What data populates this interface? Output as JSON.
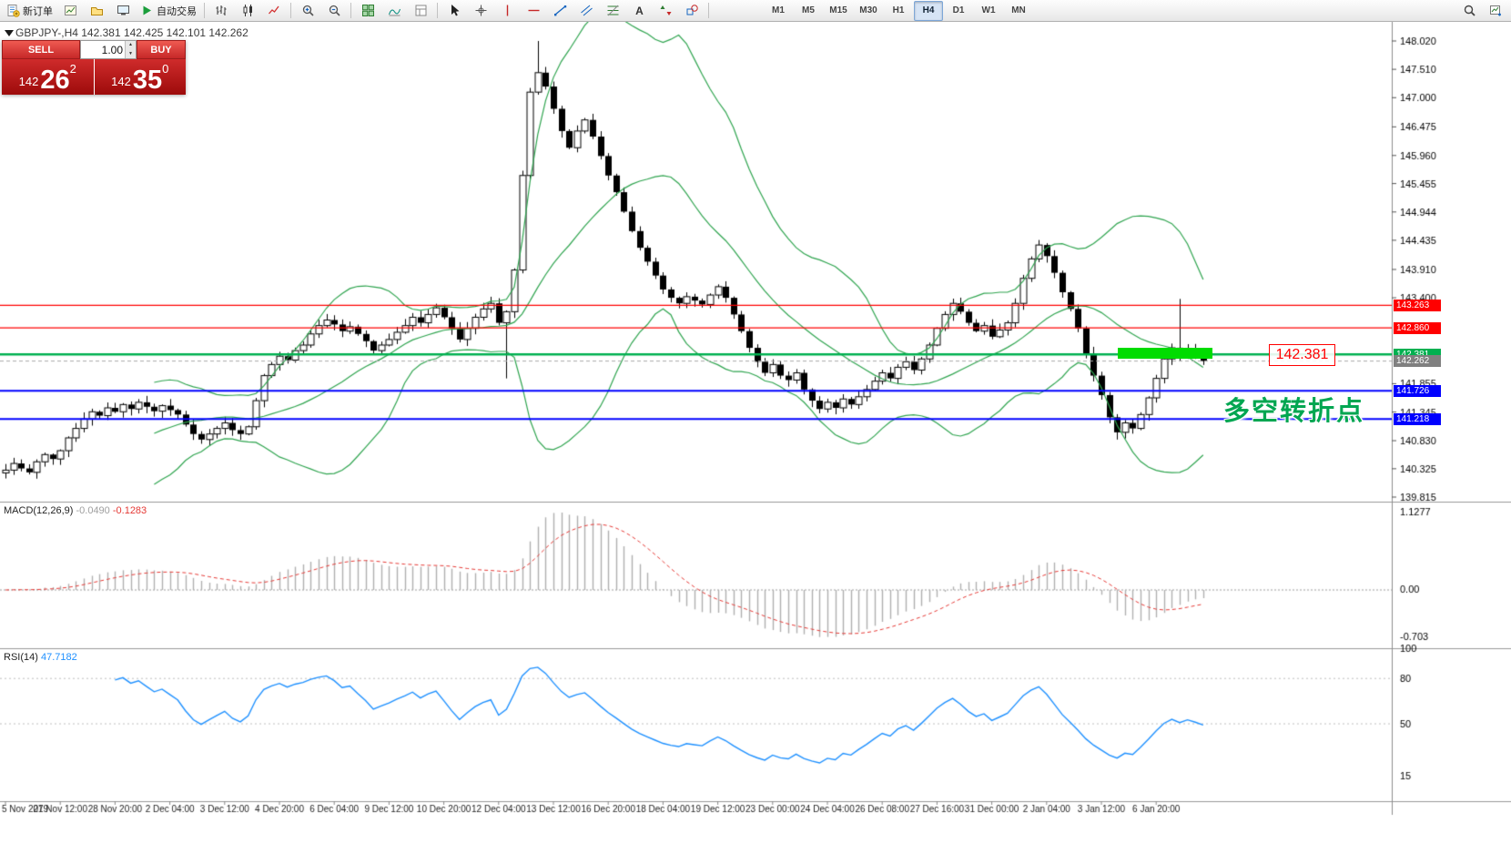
{
  "toolbar": {
    "left_buttons": [
      {
        "name": "new-order-button",
        "icon": "new-order-icon",
        "label": "新订单"
      },
      {
        "name": "chart-window-button",
        "icon": "chart-window-icon",
        "label": ""
      },
      {
        "name": "profiles-button",
        "icon": "profiles-icon",
        "label": ""
      },
      {
        "name": "terminal-button",
        "icon": "terminal-icon",
        "label": ""
      },
      {
        "name": "auto-trading-button",
        "icon": "play-icon",
        "label": "自动交易"
      }
    ],
    "chart_type_buttons": [
      {
        "name": "bar-chart-button",
        "icon": "bars-icon"
      },
      {
        "name": "candlestick-button",
        "icon": "candles-icon"
      },
      {
        "name": "line-chart-button",
        "icon": "line-chart-icon"
      }
    ],
    "zoom_buttons": [
      {
        "name": "zoom-in-button",
        "icon": "zoom-in-icon"
      },
      {
        "name": "zoom-out-button",
        "icon": "zoom-out-icon"
      }
    ],
    "window_buttons": [
      {
        "name": "tile-windows-button",
        "icon": "tile-windows-icon"
      },
      {
        "name": "indicators-button",
        "icon": "indicators-icon"
      },
      {
        "name": "templates-button",
        "icon": "templates-icon"
      }
    ],
    "drawing_buttons": [
      {
        "name": "cursor-button",
        "icon": "cursor-icon"
      },
      {
        "name": "crosshair-button",
        "icon": "crosshair-icon"
      },
      {
        "name": "vertical-line-button",
        "icon": "vertical-line-icon"
      },
      {
        "name": "horizontal-line-button",
        "icon": "horizontal-line-icon"
      },
      {
        "name": "trendline-button",
        "icon": "trendline-icon"
      },
      {
        "name": "channel-button",
        "icon": "channel-icon"
      },
      {
        "name": "fibonacci-button",
        "icon": "fibonacci-icon"
      },
      {
        "name": "text-button",
        "icon": "text-icon"
      },
      {
        "name": "arrows-button",
        "icon": "arrows-icon"
      },
      {
        "name": "shapes-button",
        "icon": "shapes-icon"
      }
    ],
    "timeframes": [
      "M1",
      "M5",
      "M15",
      "M30",
      "H1",
      "H4",
      "D1",
      "W1",
      "MN"
    ],
    "active_timeframe": "H4",
    "right_buttons": [
      {
        "name": "search-button",
        "icon": "search-icon"
      },
      {
        "name": "add-chart-button",
        "icon": "add-chart-icon"
      }
    ]
  },
  "quote_header": {
    "text": "GBPJPY-,H4  142.381 142.425 142.101 142.262"
  },
  "trade_panel": {
    "sell_label": "SELL",
    "buy_label": "BUY",
    "volume": "1.00",
    "sell_price": {
      "prefix": "142",
      "big": "26",
      "sup": "2"
    },
    "buy_price": {
      "prefix": "142",
      "big": "35",
      "sup": "0"
    }
  },
  "panels": {
    "macd": {
      "name": "MACD(12,26,9)",
      "value_main": "-0.0490",
      "value_signal": "-0.1283",
      "axis": [
        "1.1277",
        "0.00",
        "-0.703"
      ]
    },
    "rsi": {
      "name": "RSI(14)",
      "value": "47.7182",
      "axis": [
        "100",
        "80",
        "50",
        "15"
      ],
      "levels": [
        80,
        50
      ]
    }
  },
  "annotations": {
    "price_box_label": "142.381",
    "turning_point_text": "多空转折点",
    "colors": {
      "price_box": "#ff0000",
      "turning_point": "#00a651",
      "highlight": "#00dc00"
    }
  },
  "chart_data": {
    "type": "candlestick",
    "symbol": "GBPJPY-",
    "timeframe": "H4",
    "ylim": [
      139.815,
      148.02
    ],
    "closes": [
      140.3,
      140.42,
      140.33,
      140.26,
      140.45,
      140.58,
      140.5,
      140.65,
      140.88,
      141.05,
      141.22,
      141.35,
      141.28,
      141.42,
      141.35,
      141.48,
      141.4,
      141.52,
      141.44,
      141.36,
      141.46,
      141.38,
      141.3,
      141.12,
      140.95,
      140.85,
      140.95,
      141.05,
      141.15,
      141.02,
      140.95,
      141.08,
      141.55,
      142.0,
      142.2,
      142.35,
      142.28,
      142.45,
      142.55,
      142.75,
      142.9,
      143.0,
      142.92,
      142.8,
      142.88,
      142.75,
      142.62,
      142.45,
      142.55,
      142.65,
      142.78,
      142.9,
      143.05,
      142.95,
      143.1,
      143.22,
      143.05,
      142.85,
      142.65,
      142.85,
      143.05,
      143.2,
      143.3,
      142.95,
      143.15,
      143.9,
      145.6,
      147.1,
      147.45,
      147.2,
      146.8,
      146.4,
      146.1,
      146.4,
      146.6,
      146.3,
      145.95,
      145.6,
      145.3,
      144.95,
      144.6,
      144.3,
      144.05,
      143.8,
      143.55,
      143.4,
      143.3,
      143.42,
      143.35,
      143.28,
      143.45,
      143.6,
      143.4,
      143.1,
      142.8,
      142.5,
      142.25,
      142.05,
      142.2,
      142.0,
      141.92,
      142.05,
      141.75,
      141.55,
      141.4,
      141.52,
      141.42,
      141.58,
      141.48,
      141.62,
      141.75,
      141.9,
      142.05,
      141.95,
      142.15,
      142.25,
      142.1,
      142.3,
      142.55,
      142.85,
      143.1,
      143.3,
      143.15,
      142.95,
      142.8,
      142.9,
      142.7,
      142.82,
      142.95,
      143.3,
      143.75,
      144.1,
      144.35,
      144.15,
      143.85,
      143.5,
      143.2,
      142.85,
      142.4,
      142.0,
      141.65,
      141.25,
      140.98,
      141.15,
      141.05,
      141.3,
      141.6,
      141.95,
      142.3,
      142.5,
      142.35,
      142.48,
      142.38,
      142.262
    ],
    "wick_overrides": {
      "64": {
        "low": 141.95
      },
      "68": {
        "high": 148.02
      },
      "132": {
        "high": 144.44
      },
      "142": {
        "low": 140.85
      },
      "150": {
        "high": 143.38
      }
    },
    "price_axis": [
      "148.020",
      "147.510",
      "147.000",
      "146.475",
      "145.960",
      "145.455",
      "144.944",
      "144.435",
      "143.910",
      "143.400",
      "141.855",
      "141.345",
      "140.830",
      "140.325",
      "139.815"
    ],
    "hlines": [
      {
        "price": 143.263,
        "color": "#ff0000",
        "tag": "143.263",
        "width": 1.2
      },
      {
        "price": 142.86,
        "color": "#ff0000",
        "tag": "142.860",
        "width": 1.2
      },
      {
        "price": 142.381,
        "color": "#00b050",
        "tag": "142.381",
        "width": 2.4
      },
      {
        "price": 141.726,
        "color": "#0000ff",
        "tag": "141.726",
        "width": 2
      },
      {
        "price": 141.218,
        "color": "#0000ff",
        "tag": "141.218",
        "width": 2
      }
    ],
    "current_price": {
      "price": 142.262,
      "tag": "142.262",
      "color": "#808080"
    },
    "colors": {
      "bollinger": "#2fa44f",
      "bull": "#ffffff",
      "bear": "#000000",
      "rsi_line": "#1e90ff",
      "macd_hist": "#b0b0b0",
      "macd_signal": "#e53935"
    },
    "time_axis": [
      "5 Nov 2019",
      "27 Nov 12:00",
      "28 Nov 20:00",
      "2 Dec 04:00",
      "3 Dec 12:00",
      "4 Dec 20:00",
      "6 Dec 04:00",
      "9 Dec 12:00",
      "10 Dec 20:00",
      "12 Dec 04:00",
      "13 Dec 12:00",
      "16 Dec 20:00",
      "18 Dec 04:00",
      "19 Dec 12:00",
      "23 Dec 00:00",
      "24 Dec 04:00",
      "26 Dec 08:00",
      "27 Dec 16:00",
      "31 Dec 00:00",
      "2 Jan 04:00",
      "3 Jan 12:00",
      "6 Jan 20:00"
    ]
  }
}
